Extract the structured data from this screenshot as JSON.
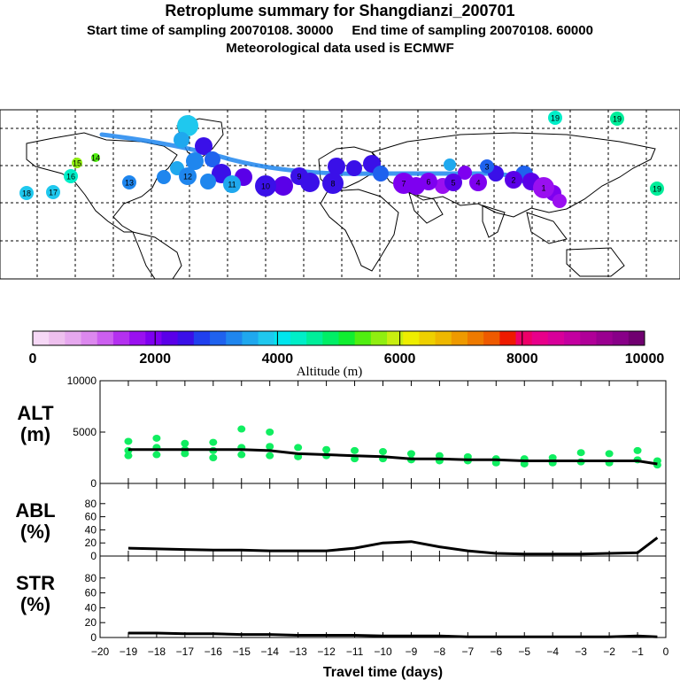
{
  "header": {
    "title": "Retroplume summary for Shangdianzi_200701",
    "line2": "Start time of sampling 20070108. 30000     End time of sampling 20070108. 60000",
    "line3": "Meteorological data used is ECMWF"
  },
  "colorbar": {
    "label": "Altitude (m)",
    "tick_labels": [
      "0",
      "2000",
      "4000",
      "6000",
      "8000",
      "10000"
    ],
    "colors": [
      "#f6d8f6",
      "#eec0ee",
      "#e6a8ee",
      "#dc88ee",
      "#cc5ff0",
      "#b430f0",
      "#9a10f0",
      "#7e00f0",
      "#5a00e8",
      "#3a10e8",
      "#2040ee",
      "#1f62ee",
      "#1f86ee",
      "#1fa8ee",
      "#1fc8ee",
      "#00e6ee",
      "#00eec8",
      "#00ee9a",
      "#00ee66",
      "#10ee30",
      "#50ee10",
      "#90ee10",
      "#c8ee10",
      "#eeee00",
      "#eed000",
      "#eeb800",
      "#ee9a00",
      "#ee7a00",
      "#ee5a00",
      "#ee1a00",
      "#ee0068",
      "#e8008a",
      "#d8009a",
      "#c400a0",
      "#b00098",
      "#9a0090",
      "#880088",
      "#700070"
    ]
  },
  "map": {
    "markers": [
      {
        "label": "19",
        "color": "#00eec8"
      },
      {
        "label": "19",
        "color": "#00ee9a"
      },
      {
        "label": "19",
        "color": "#00ee9a"
      },
      {
        "label": "18",
        "color": "#1fc8ee"
      },
      {
        "label": "17",
        "color": "#1fc8ee"
      },
      {
        "label": "16",
        "color": "#00eec8"
      },
      {
        "label": "15",
        "color": "#90ee10"
      },
      {
        "label": "14",
        "color": "#50ee10"
      },
      {
        "label": "13",
        "color": "#1f86ee"
      },
      {
        "label": "12",
        "color": "#1f86ee"
      },
      {
        "label": "11",
        "color": "#1fa8ee"
      },
      {
        "label": "10",
        "color": "#3a10e8"
      },
      {
        "label": "9",
        "color": "#3a10e8"
      },
      {
        "label": "8",
        "color": "#3a10e8"
      },
      {
        "label": "7",
        "color": "#7e00f0"
      },
      {
        "label": "6",
        "color": "#7e00f0"
      },
      {
        "label": "5",
        "color": "#5a00e8"
      },
      {
        "label": "4",
        "color": "#7e00f0"
      },
      {
        "label": "3",
        "color": "#1f62ee"
      },
      {
        "label": "2",
        "color": "#5a00e8"
      },
      {
        "label": "1",
        "color": "#9a10f0"
      }
    ]
  },
  "chart_data": [
    {
      "type": "scatter",
      "panel": "ALT",
      "ylabel": "ALT\n(m)",
      "ylabel_lines": [
        "ALT",
        "(m)"
      ],
      "ylim": [
        0,
        10000
      ],
      "yticks": [
        "10000",
        "5000",
        "0"
      ],
      "xlim": [
        -20,
        0
      ],
      "line_x": [
        -19,
        -18,
        -17,
        -16,
        -15,
        -14,
        -13,
        -12,
        -11,
        -10,
        -9,
        -8,
        -7,
        -6,
        -5,
        -4,
        -3,
        -2,
        -1,
        -0.3
      ],
      "line_y": [
        3300,
        3300,
        3300,
        3300,
        3300,
        3200,
        2900,
        2800,
        2700,
        2600,
        2400,
        2400,
        2300,
        2300,
        2200,
        2200,
        2200,
        2200,
        2200,
        1900
      ],
      "point_x": [
        -19,
        -19,
        -19,
        -18,
        -18,
        -18,
        -17,
        -17,
        -17,
        -16,
        -16,
        -16,
        -15,
        -15,
        -15,
        -14,
        -14,
        -14,
        -13,
        -13,
        -12,
        -12,
        -11,
        -11,
        -10,
        -10,
        -9,
        -9,
        -8,
        -8,
        -7,
        -7,
        -6,
        -6,
        -5,
        -5,
        -4,
        -4,
        -3,
        -3,
        -2,
        -2,
        -1,
        -1,
        -0.3,
        -0.3
      ],
      "point_y": [
        4100,
        3200,
        2700,
        4400,
        3500,
        2800,
        3900,
        3300,
        2900,
        4000,
        3200,
        2500,
        5300,
        3500,
        2800,
        5000,
        3600,
        2700,
        3500,
        2600,
        3300,
        2700,
        3200,
        2400,
        3100,
        2400,
        2900,
        2300,
        2700,
        2200,
        2600,
        2200,
        2400,
        2000,
        2400,
        1900,
        2500,
        2000,
        3000,
        2100,
        2900,
        2000,
        3200,
        2300,
        2200,
        1800
      ]
    },
    {
      "type": "line",
      "panel": "ABL",
      "ylabel": "ABL\n(%)",
      "ylabel_lines": [
        "ABL",
        "(%)"
      ],
      "ylim": [
        0,
        100
      ],
      "yticks": [
        "80",
        "60",
        "40",
        "20",
        "0"
      ],
      "xlim": [
        -20,
        0
      ],
      "x": [
        -19,
        -18,
        -17,
        -16,
        -15,
        -14,
        -13,
        -12,
        -11,
        -10,
        -9,
        -8,
        -7,
        -6,
        -5,
        -4,
        -3,
        -2,
        -1,
        -0.3
      ],
      "y": [
        12,
        11,
        10,
        9,
        9,
        8,
        8,
        8,
        12,
        20,
        22,
        14,
        8,
        4,
        3,
        3,
        3,
        4,
        5,
        28
      ]
    },
    {
      "type": "line",
      "panel": "STR",
      "ylabel": "STR\n(%)",
      "ylabel_lines": [
        "STR",
        "(%)"
      ],
      "ylim": [
        0,
        100
      ],
      "yticks": [
        "80",
        "60",
        "40",
        "20",
        "0"
      ],
      "xlim": [
        -20,
        0
      ],
      "x": [
        -19,
        -18,
        -17,
        -16,
        -15,
        -14,
        -13,
        -12,
        -11,
        -10,
        -9,
        -8,
        -7,
        -6,
        -5,
        -4,
        -3,
        -2,
        -1,
        -0.3
      ],
      "y": [
        6,
        6,
        5,
        5,
        4,
        4,
        3,
        3,
        3,
        2,
        2,
        2,
        1,
        1,
        1,
        1,
        1,
        1,
        2,
        1
      ],
      "xlabel": "Travel time (days)",
      "xtick_labels": [
        "−20",
        "−19",
        "−18",
        "−17",
        "−16",
        "−15",
        "−14",
        "−13",
        "−12",
        "−11",
        "−10",
        "−9",
        "−8",
        "−7",
        "−6",
        "−5",
        "−4",
        "−3",
        "−2",
        "−1",
        "0"
      ]
    }
  ]
}
